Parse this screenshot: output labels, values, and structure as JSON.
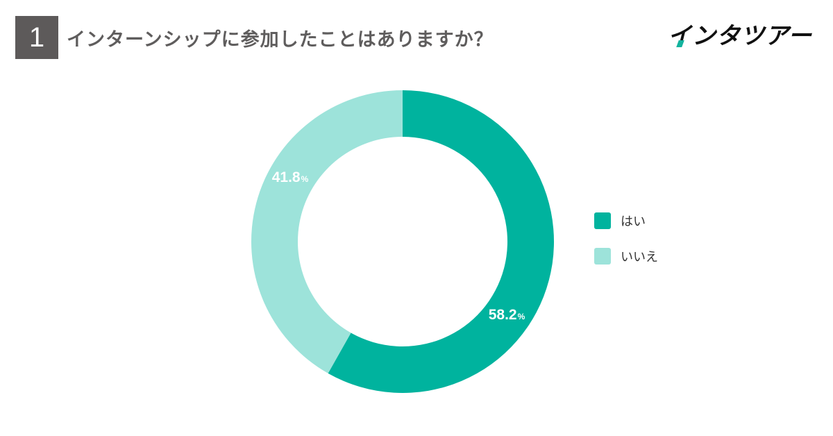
{
  "header": {
    "question_number": "1",
    "title": "インターンシップに参加したことはありますか？"
  },
  "brand": {
    "logo_text": "インタツアー",
    "accent_color": "#13b39e"
  },
  "chart_data": {
    "type": "pie",
    "donut": true,
    "start": "12 o'clock, clockwise",
    "legend_position": "right",
    "series": [
      {
        "name": "はい",
        "value": 58.2,
        "color": "#00b39e",
        "label": "58.2",
        "unit": "%"
      },
      {
        "name": "いいえ",
        "value": 41.8,
        "color": "#9de3da",
        "label": "41.8",
        "unit": "%"
      }
    ]
  }
}
